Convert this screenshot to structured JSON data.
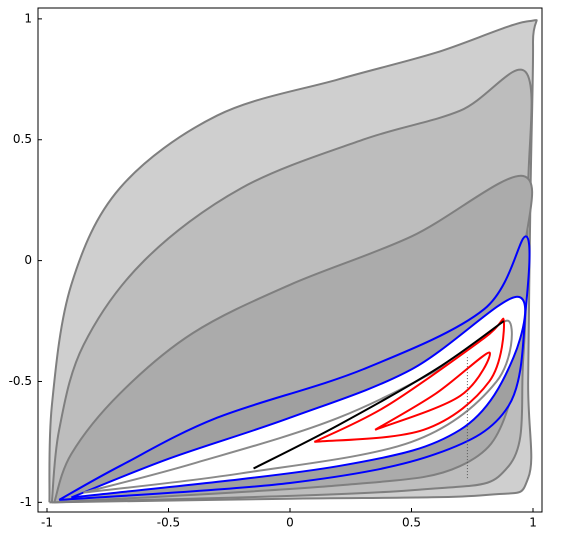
{
  "chart_data": {
    "type": "line",
    "xlim": [
      -1.037,
      1.037
    ],
    "ylim": [
      -1.04,
      1.045
    ],
    "xticks": [
      -1,
      -0.5,
      0,
      0.5,
      1
    ],
    "yticks": [
      -1,
      -0.5,
      0,
      0.5,
      1
    ],
    "series": [
      {
        "color": "#7f7f7f",
        "fill": "#cfcfcf",
        "x": [
          -0.99,
          -0.98,
          -0.9,
          -0.7,
          -0.3,
          0.2,
          0.6,
          0.98,
          1.0,
          0.99,
          0.98,
          0.98,
          0.8,
          0.0,
          -0.99
        ],
        "y": [
          -1.0,
          -0.6,
          -0.1,
          0.3,
          0.6,
          0.75,
          0.86,
          0.99,
          0.9,
          0.3,
          -0.5,
          -0.9,
          -0.97,
          -0.985,
          -1.0
        ]
      },
      {
        "color": "#7f7f7f",
        "fill": "#bdbdbd",
        "x": [
          -0.98,
          -0.95,
          -0.85,
          -0.6,
          -0.2,
          0.3,
          0.7,
          0.97,
          0.98,
          0.96,
          0.9,
          0.5,
          -0.98
        ],
        "y": [
          -1.0,
          -0.7,
          -0.35,
          0.0,
          0.3,
          0.5,
          0.62,
          0.78,
          0.3,
          -0.4,
          -0.85,
          -0.95,
          -1.0
        ]
      },
      {
        "color": "#7f7f7f",
        "fill": "#ababab",
        "x": [
          -0.97,
          -0.9,
          -0.7,
          -0.4,
          0.0,
          0.5,
          0.96,
          0.96,
          0.9,
          0.7,
          0.2,
          -0.97
        ],
        "y": [
          -1.0,
          -0.8,
          -0.55,
          -0.3,
          -0.1,
          0.1,
          0.35,
          0.0,
          -0.6,
          -0.85,
          -0.93,
          -1.0
        ]
      },
      {
        "color": "#0000ff",
        "fill": "#a0a0a0",
        "x": [
          -0.95,
          -0.7,
          -0.3,
          0.3,
          0.8,
          0.97,
          0.97,
          0.9,
          0.6,
          0.0,
          -0.95
        ],
        "y": [
          -0.99,
          -0.85,
          -0.65,
          -0.45,
          -0.2,
          0.1,
          -0.2,
          -0.6,
          -0.8,
          -0.92,
          -0.99
        ]
      },
      {
        "color": "#0000ff",
        "fill": "#ffffff",
        "x": [
          -0.9,
          -0.5,
          0.0,
          0.5,
          0.93,
          0.92,
          0.7,
          0.2,
          -0.9
        ],
        "y": [
          -0.98,
          -0.82,
          -0.65,
          -0.45,
          -0.15,
          -0.4,
          -0.7,
          -0.85,
          -0.98
        ]
      },
      {
        "color": "#8a8a8a",
        "fill": "#ffffff",
        "x": [
          -0.85,
          -0.4,
          0.2,
          0.7,
          0.9,
          0.85,
          0.5,
          -0.2,
          -0.85
        ],
        "y": [
          -0.96,
          -0.84,
          -0.65,
          -0.4,
          -0.25,
          -0.5,
          -0.75,
          -0.88,
          -0.96
        ]
      },
      {
        "color": "#ff0000",
        "fill": "#ffffff",
        "x": [
          0.1,
          0.4,
          0.8,
          0.88,
          0.82,
          0.55,
          0.1
        ],
        "y": [
          -0.75,
          -0.6,
          -0.32,
          -0.25,
          -0.5,
          -0.7,
          -0.75
        ]
      },
      {
        "color": "#ff0000",
        "fill": "#ffffff",
        "x": [
          0.35,
          0.6,
          0.82,
          0.7,
          0.35
        ],
        "y": [
          -0.7,
          -0.55,
          -0.38,
          -0.56,
          -0.7
        ]
      },
      {
        "color": "#000000",
        "fill": "none",
        "x": [
          -0.15,
          0.2,
          0.6,
          0.88
        ],
        "y": [
          -0.86,
          -0.68,
          -0.45,
          -0.25
        ]
      },
      {
        "color": "#555555",
        "fill": "none",
        "x": [
          0.73,
          0.73
        ],
        "y": [
          -0.9,
          -0.4
        ]
      }
    ]
  }
}
